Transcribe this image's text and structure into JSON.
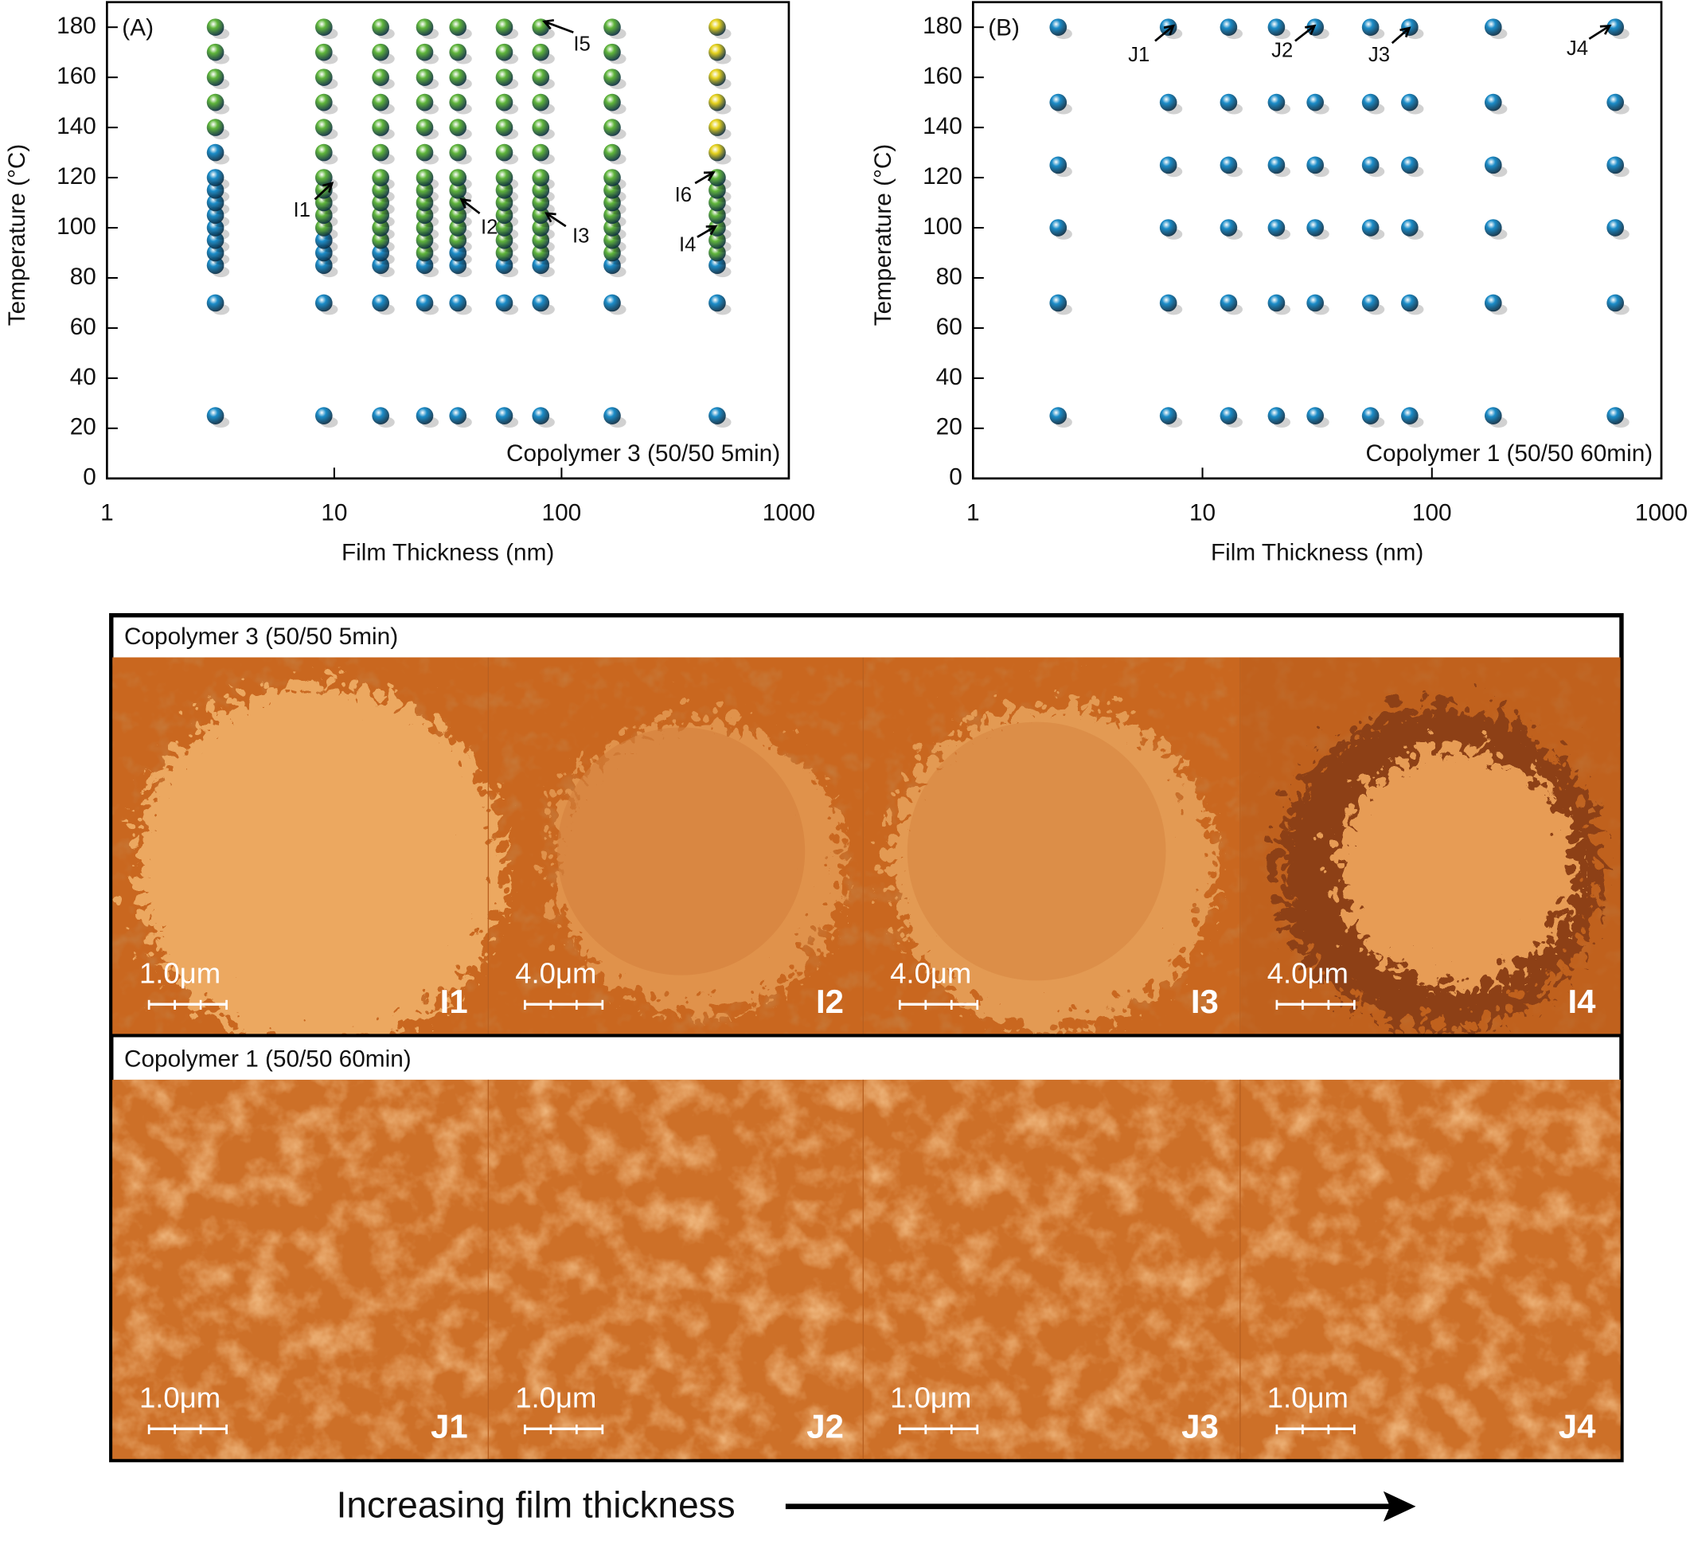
{
  "chart_data": [
    {
      "type": "scatter",
      "panel_label": "(A)",
      "note": "Copolymer 3 (50/50 5min)",
      "x_label": "Film Thickness (nm)",
      "y_label": "Temperature (°C)",
      "xscale": "log",
      "xlim": [
        1,
        1000
      ],
      "xticks": [
        1,
        10,
        100,
        1000
      ],
      "ylim": [
        0,
        190
      ],
      "yticks": [
        0,
        20,
        40,
        60,
        80,
        100,
        120,
        140,
        160,
        180
      ],
      "annotations": [
        "I1",
        "I2",
        "I3",
        "I4",
        "I5",
        "I6"
      ],
      "series": [
        {
          "color": "#1b8cc8",
          "x": [
            3,
            3,
            3,
            3,
            3,
            3,
            3,
            3,
            3,
            3,
            3,
            9,
            9,
            9,
            9,
            9,
            16,
            16,
            16,
            16,
            25,
            25,
            25,
            35,
            35,
            35,
            35,
            56,
            56,
            56,
            81,
            81,
            81,
            167,
            167,
            167,
            484,
            484,
            484
          ],
          "values": [
            25,
            70,
            85,
            90,
            95,
            100,
            105,
            110,
            115,
            120,
            130,
            25,
            70,
            85,
            90,
            95,
            25,
            70,
            85,
            90,
            25,
            70,
            85,
            25,
            70,
            85,
            90,
            25,
            70,
            85,
            25,
            70,
            85,
            25,
            70,
            85,
            25,
            70,
            85
          ]
        },
        {
          "color": "#5fb53a",
          "x": [
            3,
            3,
            3,
            3,
            3,
            9,
            9,
            9,
            9,
            9,
            9,
            9,
            9,
            9,
            9,
            9,
            16,
            16,
            16,
            16,
            16,
            16,
            16,
            16,
            16,
            16,
            16,
            16,
            25,
            25,
            25,
            25,
            25,
            25,
            25,
            25,
            25,
            25,
            25,
            25,
            25,
            35,
            35,
            35,
            35,
            35,
            35,
            35,
            35,
            35,
            35,
            35,
            35,
            56,
            56,
            56,
            56,
            56,
            56,
            56,
            56,
            56,
            56,
            56,
            56,
            56,
            81,
            81,
            81,
            81,
            81,
            81,
            81,
            81,
            81,
            81,
            81,
            81,
            81,
            167,
            167,
            167,
            167,
            167,
            167,
            167,
            167,
            167,
            167,
            167,
            167,
            167,
            484,
            484,
            484,
            484,
            484,
            484,
            484
          ],
          "values": [
            140,
            150,
            160,
            170,
            180,
            100,
            105,
            110,
            115,
            120,
            130,
            140,
            150,
            160,
            170,
            180,
            95,
            100,
            105,
            110,
            115,
            120,
            130,
            140,
            150,
            160,
            170,
            180,
            90,
            95,
            100,
            105,
            110,
            115,
            120,
            130,
            140,
            150,
            160,
            170,
            180,
            95,
            100,
            105,
            110,
            115,
            120,
            130,
            140,
            150,
            160,
            170,
            180,
            90,
            95,
            100,
            105,
            110,
            115,
            120,
            130,
            140,
            150,
            160,
            170,
            180,
            90,
            95,
            100,
            105,
            110,
            115,
            120,
            130,
            140,
            150,
            160,
            170,
            180,
            90,
            95,
            100,
            105,
            110,
            115,
            120,
            130,
            140,
            150,
            160,
            170,
            180,
            90,
            95,
            100,
            105,
            110,
            115,
            120
          ]
        },
        {
          "color": "#e6d21c",
          "x": [
            484,
            484,
            484,
            484,
            484,
            484
          ],
          "values": [
            130,
            140,
            150,
            160,
            170,
            180
          ]
        }
      ]
    },
    {
      "type": "scatter",
      "panel_label": "(B)",
      "note": "Copolymer 1 (50/50 60min)",
      "x_label": "Film Thickness (nm)",
      "y_label": "Temperature (°C)",
      "xscale": "log",
      "xlim": [
        1,
        1000
      ],
      "xticks": [
        1,
        10,
        100,
        1000
      ],
      "ylim": [
        0,
        190
      ],
      "yticks": [
        0,
        20,
        40,
        60,
        80,
        100,
        120,
        140,
        160,
        180
      ],
      "annotations": [
        "J1",
        "J2",
        "J3",
        "J4"
      ],
      "series": [
        {
          "color": "#1b8cc8",
          "x": [
            2.35,
            2.35,
            2.35,
            2.35,
            2.35,
            2.35,
            7.1,
            7.1,
            7.1,
            7.1,
            7.1,
            7.1,
            13,
            13,
            13,
            13,
            13,
            13,
            21,
            21,
            21,
            21,
            21,
            21,
            31,
            31,
            31,
            31,
            31,
            31,
            54,
            54,
            54,
            54,
            54,
            54,
            80,
            80,
            80,
            80,
            80,
            80,
            185,
            185,
            185,
            185,
            185,
            185,
            630,
            630,
            630,
            630,
            630,
            630
          ],
          "values": [
            25,
            70,
            100,
            125,
            150,
            180,
            25,
            70,
            100,
            125,
            150,
            180,
            25,
            70,
            100,
            125,
            150,
            180,
            25,
            70,
            100,
            125,
            150,
            180,
            25,
            70,
            100,
            125,
            150,
            180,
            25,
            70,
            100,
            125,
            150,
            180,
            25,
            70,
            100,
            125,
            150,
            180,
            25,
            70,
            100,
            125,
            150,
            180,
            25,
            70,
            100,
            125,
            150,
            180
          ]
        }
      ]
    }
  ],
  "panels": [
    {
      "title": "Copolymer 3 (50/50 5min)",
      "images": [
        {
          "scale": "1.0μm",
          "label": "I1"
        },
        {
          "scale": "4.0μm",
          "label": "I2"
        },
        {
          "scale": "4.0μm",
          "label": "I3"
        },
        {
          "scale": "4.0μm",
          "label": "I4"
        }
      ]
    },
    {
      "title": "Copolymer 1 (50/50 60min)",
      "images": [
        {
          "scale": "1.0μm",
          "label": "J1"
        },
        {
          "scale": "1.0μm",
          "label": "J2"
        },
        {
          "scale": "1.0μm",
          "label": "J3"
        },
        {
          "scale": "1.0μm",
          "label": "J4"
        }
      ]
    }
  ],
  "caption": "Increasing film thickness"
}
